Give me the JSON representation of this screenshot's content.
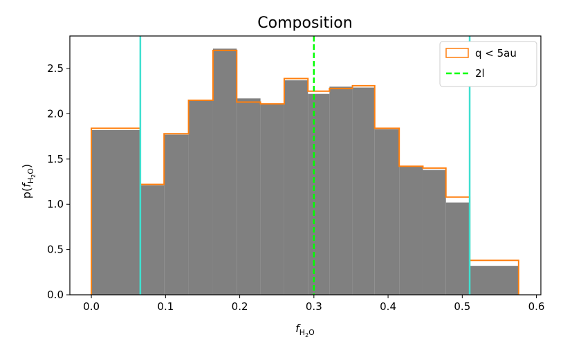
{
  "chart_data": {
    "type": "bar",
    "title": "Composition",
    "xlabel": "f_{H2O}",
    "ylabel": "p(f_{H2O})",
    "xlim": [
      -0.029,
      0.606
    ],
    "ylim": [
      0,
      2.86
    ],
    "xticks": [
      "0.0",
      "0.1",
      "0.2",
      "0.3",
      "0.4",
      "0.5",
      "0.6"
    ],
    "yticks": [
      "0.0",
      "0.5",
      "1.0",
      "1.5",
      "2.0",
      "2.5"
    ],
    "grid": false,
    "legend_position": "top-right",
    "bin_edges": [
      0.0,
      0.066,
      0.098,
      0.131,
      0.164,
      0.196,
      0.228,
      0.26,
      0.292,
      0.321,
      0.352,
      0.382,
      0.415,
      0.447,
      0.478,
      0.51,
      0.576
    ],
    "series": [
      {
        "style": "filled",
        "color": "#808080",
        "values": [
          1.82,
          1.21,
          1.77,
          2.15,
          2.72,
          2.17,
          2.11,
          2.37,
          2.22,
          2.3,
          2.29,
          1.83,
          1.42,
          1.38,
          1.02,
          0.32
        ]
      },
      {
        "name": "q < 5au",
        "style": "step",
        "color": "#ff7f0e",
        "values": [
          1.84,
          1.22,
          1.78,
          2.15,
          2.7,
          2.13,
          2.11,
          2.39,
          2.25,
          2.28,
          2.31,
          1.84,
          1.42,
          1.4,
          1.08,
          0.38
        ]
      }
    ],
    "reference_lines": [
      {
        "name": "2l",
        "x": 0.3,
        "style": "dashed",
        "color": "#00ff00"
      },
      {
        "x": 0.066,
        "style": "solid",
        "color": "#40e0d0"
      },
      {
        "x": 0.51,
        "style": "solid",
        "color": "#40e0d0"
      }
    ]
  }
}
